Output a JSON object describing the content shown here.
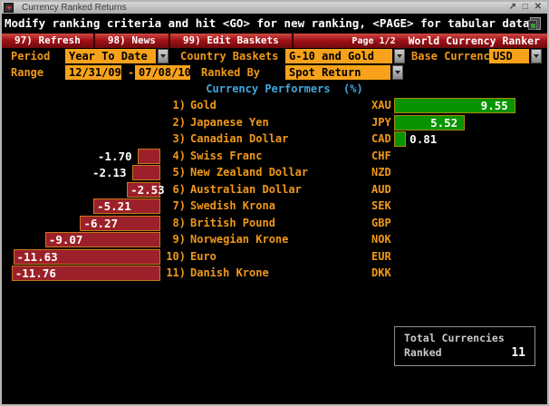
{
  "window": {
    "title": "Currency Ranked Returns",
    "controls": [
      "↗",
      "□",
      "✕"
    ]
  },
  "message": "Modify ranking criteria and hit <GO> for new ranking, <PAGE> for tabular data",
  "toolbar": {
    "buttons": [
      {
        "label": "97) Refresh"
      },
      {
        "label": "98) News"
      },
      {
        "label": "99) Edit Baskets"
      }
    ],
    "page": "Page 1/2",
    "app_title": "World Currency Ranker"
  },
  "form": {
    "period_label": "Period",
    "period_value": "Year To Date",
    "country_baskets_label": "Country Baskets",
    "country_baskets_value": "G-10 and Gold",
    "base_currency_label": "Base Currency",
    "base_currency_value": "USD",
    "range_label": "Range",
    "range_from": "12/31/09",
    "range_separator": "-",
    "range_to": "07/08/10",
    "ranked_by_label": "Ranked By",
    "ranked_by_value": "Spot Return"
  },
  "chart_data": {
    "type": "bar",
    "orientation": "horizontal",
    "title": "Currency Performers  (%)",
    "unit": "%",
    "positive_color": "#089400",
    "positive_border": "#a88a10",
    "negative_color": "#9c2029",
    "negative_border": "#c8761f",
    "rows": [
      {
        "rank": "1)",
        "name": "Gold",
        "code": "XAU",
        "value": 9.55,
        "display": "9.55"
      },
      {
        "rank": "2)",
        "name": "Japanese Yen",
        "code": "JPY",
        "value": 5.52,
        "display": "5.52"
      },
      {
        "rank": "3)",
        "name": "Canadian Dollar",
        "code": "CAD",
        "value": 0.81,
        "display": "0.81"
      },
      {
        "rank": "4)",
        "name": "Swiss Franc",
        "code": "CHF",
        "value": -1.7,
        "display": "-1.70"
      },
      {
        "rank": "5)",
        "name": "New Zealand Dollar",
        "code": "NZD",
        "value": -2.13,
        "display": "-2.13"
      },
      {
        "rank": "6)",
        "name": "Australian Dollar",
        "code": "AUD",
        "value": -2.53,
        "display": "-2.53"
      },
      {
        "rank": "7)",
        "name": "Swedish Krona",
        "code": "SEK",
        "value": -5.21,
        "display": "-5.21"
      },
      {
        "rank": "8)",
        "name": "British Pound",
        "code": "GBP",
        "value": -6.27,
        "display": "-6.27"
      },
      {
        "rank": "9)",
        "name": "Norwegian Krone",
        "code": "NOK",
        "value": -9.07,
        "display": "-9.07"
      },
      {
        "rank": "10)",
        "name": "Euro",
        "code": "EUR",
        "value": -11.63,
        "display": "-11.63"
      },
      {
        "rank": "11)",
        "name": "Danish Krone",
        "code": "DKK",
        "value": -11.76,
        "display": "-11.76"
      }
    ]
  },
  "summary": {
    "line1": "Total Currencies",
    "line2": "Ranked",
    "value": "11"
  },
  "colors": {
    "amber_text": "#f09819",
    "amber_field": "#f7a21a",
    "cyan_title": "#3fa7dc",
    "toolbar_red": "#a31318"
  }
}
